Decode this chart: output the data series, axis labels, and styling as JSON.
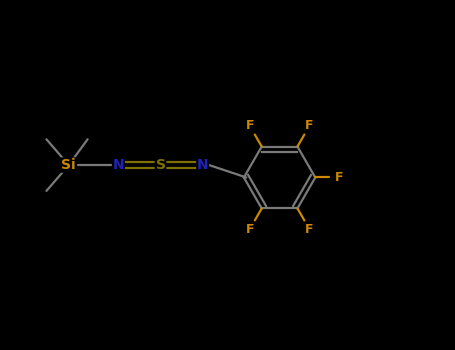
{
  "background_color": "#000000",
  "bond_color": "#7a7a7a",
  "nitrogen_color": "#2222bb",
  "sulfur_color": "#807000",
  "fluorine_color": "#cc8800",
  "silicon_color": "#cc8800",
  "carbon_color": "#7a7a7a",
  "fig_width": 4.55,
  "fig_height": 3.5,
  "dpi": 100,
  "xlim": [
    0,
    9
  ],
  "ylim": [
    0,
    7
  ]
}
